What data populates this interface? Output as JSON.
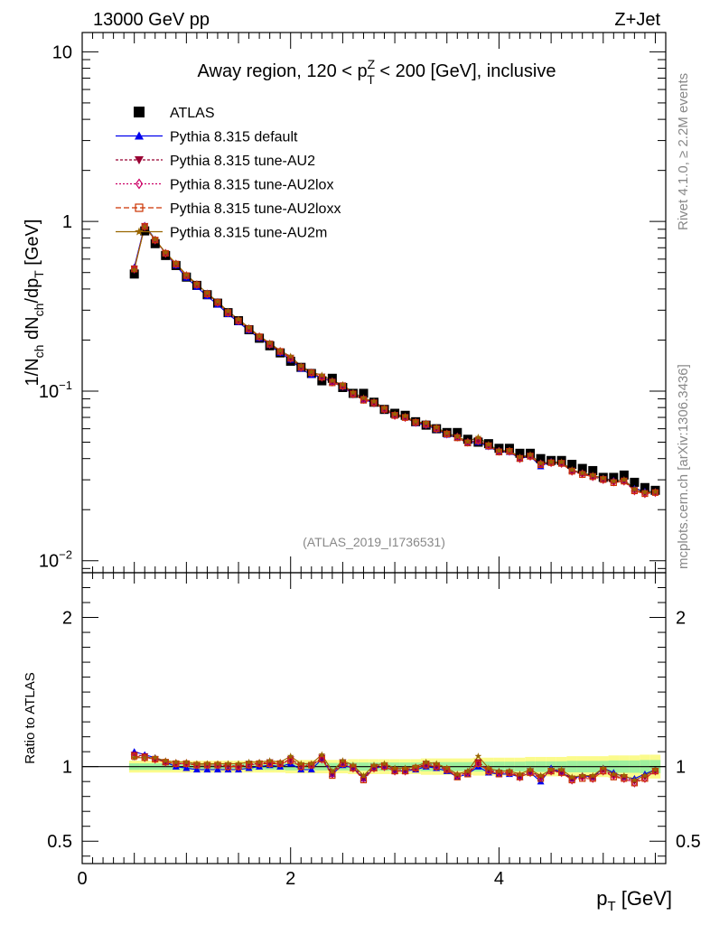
{
  "header": {
    "energy_label": "13000 GeV pp",
    "process_label": "Z+Jet"
  },
  "side_labels": {
    "rivet": "Rivet 4.1.0, ≥ 2.2M events",
    "mcplots": "mcplots.cern.ch [arXiv:1306.3436]"
  },
  "chart_data": {
    "type": "scatter",
    "title": "Away region, 120 < p_T^Z < 200 [GeV], inclusive",
    "title_parts": {
      "pre": "Away region, 120 < p",
      "sup": "Z",
      "sub": "T",
      "post": " < 200 [GeV], inclusive"
    },
    "analysis_id": "(ATLAS_2019_I1736531)",
    "xlabel": "p_T [GeV]",
    "xlabel_parts": {
      "main": "p",
      "sub": "T",
      "unit": " [GeV]"
    },
    "ylabel": "1/N_ch dN_ch/dp_T [GeV]",
    "ylabel_parts": {
      "a": "1/N",
      "a_sub": "ch",
      "b": " dN",
      "b_sub": "ch",
      "c": "/dp",
      "c_sub": "T",
      "d": " [GeV]"
    },
    "ratio_ylabel": "Ratio to ATLAS",
    "xlim": [
      0,
      5.6
    ],
    "ylim": [
      0.0085,
      13
    ],
    "yscale": "log",
    "ratio_ylim": [
      0.35,
      2.3
    ],
    "x_ticks": [
      "0",
      "2",
      "4"
    ],
    "y_ticks": [
      {
        "value": 10,
        "label": "10"
      },
      {
        "value": 1,
        "label": "1"
      },
      {
        "value": 0.1,
        "label": "10",
        "exp": "−1"
      },
      {
        "value": 0.01,
        "label": "10",
        "exp": "−2"
      }
    ],
    "ratio_ticks": [
      {
        "value": 2,
        "label": "2"
      },
      {
        "value": 1,
        "label": "1"
      },
      {
        "value": 0.5,
        "label": "0.5"
      }
    ],
    "x": [
      0.5,
      0.6,
      0.7,
      0.8,
      0.9,
      1.0,
      1.1,
      1.2,
      1.3,
      1.4,
      1.5,
      1.6,
      1.7,
      1.8,
      1.9,
      2.0,
      2.1,
      2.2,
      2.3,
      2.4,
      2.5,
      2.6,
      2.7,
      2.8,
      2.9,
      3.0,
      3.1,
      3.2,
      3.3,
      3.4,
      3.5,
      3.6,
      3.7,
      3.8,
      3.9,
      4.0,
      4.1,
      4.2,
      4.3,
      4.4,
      4.5,
      4.6,
      4.7,
      4.8,
      4.9,
      5.0,
      5.1,
      5.2,
      5.3,
      5.4,
      5.5
    ],
    "atlas": [
      0.49,
      0.88,
      0.74,
      0.63,
      0.55,
      0.47,
      0.42,
      0.37,
      0.33,
      0.29,
      0.26,
      0.23,
      0.205,
      0.185,
      0.168,
      0.15,
      0.138,
      0.127,
      0.115,
      0.119,
      0.105,
      0.097,
      0.097,
      0.086,
      0.078,
      0.074,
      0.072,
      0.066,
      0.063,
      0.06,
      0.057,
      0.057,
      0.052,
      0.05,
      0.049,
      0.046,
      0.046,
      0.043,
      0.043,
      0.04,
      0.039,
      0.039,
      0.037,
      0.035,
      0.034,
      0.031,
      0.031,
      0.032,
      0.029,
      0.027,
      0.026
    ],
    "band_width": [
      0.04,
      0.04,
      0.04,
      0.04,
      0.04,
      0.04,
      0.04,
      0.04,
      0.04,
      0.04,
      0.04,
      0.04,
      0.04,
      0.04,
      0.04,
      0.045,
      0.045,
      0.045,
      0.045,
      0.045,
      0.045,
      0.05,
      0.05,
      0.05,
      0.05,
      0.05,
      0.05,
      0.05,
      0.055,
      0.055,
      0.055,
      0.055,
      0.055,
      0.06,
      0.06,
      0.06,
      0.06,
      0.06,
      0.065,
      0.065,
      0.065,
      0.065,
      0.07,
      0.07,
      0.07,
      0.07,
      0.075,
      0.075,
      0.075,
      0.08,
      0.08
    ],
    "series": [
      {
        "name": "ATLAS",
        "color": "#000000",
        "marker": "square"
      },
      {
        "name": "Pythia 8.315 default",
        "color": "#0000ee",
        "marker": "triangle",
        "dash": "",
        "ratio": [
          1.1,
          1.08,
          1.06,
          1.03,
          1.0,
          0.99,
          0.98,
          0.98,
          0.98,
          0.98,
          0.98,
          0.99,
          1.0,
          1.01,
          1.0,
          1.02,
          0.98,
          0.98,
          1.05,
          0.95,
          1.01,
          0.99,
          0.92,
          0.99,
          1.0,
          0.97,
          0.97,
          0.98,
          1.0,
          0.99,
          0.97,
          0.93,
          0.95,
          1.0,
          0.96,
          0.95,
          0.95,
          0.93,
          0.96,
          0.9,
          0.99,
          0.96,
          0.92,
          0.94,
          0.93,
          0.99,
          0.96,
          0.93,
          0.92,
          0.95,
          0.98
        ]
      },
      {
        "name": "Pythia 8.315 tune-AU2",
        "color": "#990033",
        "marker": "invtriangle",
        "dash": "3,2",
        "ratio": [
          1.08,
          1.07,
          1.05,
          1.03,
          1.02,
          1.02,
          1.01,
          1.01,
          1.01,
          1.01,
          1.0,
          1.02,
          1.02,
          1.03,
          1.02,
          1.05,
          1.01,
          1.01,
          1.06,
          0.96,
          1.03,
          1.0,
          0.93,
          1.0,
          1.01,
          0.98,
          0.98,
          0.99,
          1.02,
          1.01,
          0.98,
          0.94,
          0.96,
          1.03,
          0.98,
          0.96,
          0.96,
          0.94,
          0.97,
          0.93,
          0.97,
          0.97,
          0.92,
          0.93,
          0.93,
          0.98,
          0.94,
          0.93,
          0.9,
          0.93,
          0.97
        ]
      },
      {
        "name": "Pythia 8.315 tune-AU2lox",
        "color": "#cc0066",
        "marker": "diamond",
        "dash": "2,2",
        "ratio": [
          1.07,
          1.06,
          1.05,
          1.03,
          1.02,
          1.02,
          1.01,
          1.01,
          1.01,
          1.0,
          1.0,
          1.01,
          1.02,
          1.02,
          1.02,
          1.04,
          1.0,
          1.01,
          1.05,
          0.95,
          1.02,
          0.99,
          0.92,
          0.99,
          1.0,
          0.97,
          0.97,
          0.99,
          1.01,
          1.0,
          0.98,
          0.94,
          0.96,
          1.02,
          0.97,
          0.96,
          0.96,
          0.93,
          0.96,
          0.93,
          0.97,
          0.96,
          0.91,
          0.93,
          0.92,
          0.97,
          0.94,
          0.92,
          0.89,
          0.92,
          0.97
        ]
      },
      {
        "name": "Pythia 8.315 tune-AU2loxx",
        "color": "#cc3300",
        "marker": "opensquare",
        "dash": "6,3",
        "ratio": [
          1.07,
          1.06,
          1.05,
          1.03,
          1.02,
          1.02,
          1.01,
          1.01,
          1.01,
          1.0,
          1.0,
          1.01,
          1.02,
          1.02,
          1.02,
          1.04,
          1.0,
          1.01,
          1.05,
          0.94,
          1.02,
          0.99,
          0.91,
          0.99,
          1.0,
          0.97,
          0.97,
          0.99,
          1.01,
          1.0,
          0.98,
          0.93,
          0.95,
          1.02,
          0.97,
          0.95,
          0.96,
          0.93,
          0.96,
          0.92,
          0.97,
          0.96,
          0.91,
          0.92,
          0.92,
          0.97,
          0.93,
          0.92,
          0.89,
          0.92,
          0.97
        ]
      },
      {
        "name": "Pythia 8.315 tune-AU2m",
        "color": "#996600",
        "marker": "star",
        "dash": "",
        "ratio": [
          1.06,
          1.06,
          1.06,
          1.04,
          1.03,
          1.03,
          1.02,
          1.02,
          1.02,
          1.02,
          1.02,
          1.03,
          1.03,
          1.04,
          1.03,
          1.07,
          1.02,
          1.02,
          1.08,
          0.97,
          1.04,
          1.01,
          0.94,
          1.01,
          1.02,
          0.99,
          0.99,
          1.0,
          1.03,
          1.02,
          0.99,
          0.95,
          0.97,
          1.07,
          0.99,
          0.97,
          0.97,
          0.95,
          0.98,
          0.94,
          0.98,
          0.98,
          0.93,
          0.94,
          0.94,
          0.99,
          0.95,
          0.94,
          0.91,
          0.94,
          0.98
        ]
      }
    ]
  }
}
